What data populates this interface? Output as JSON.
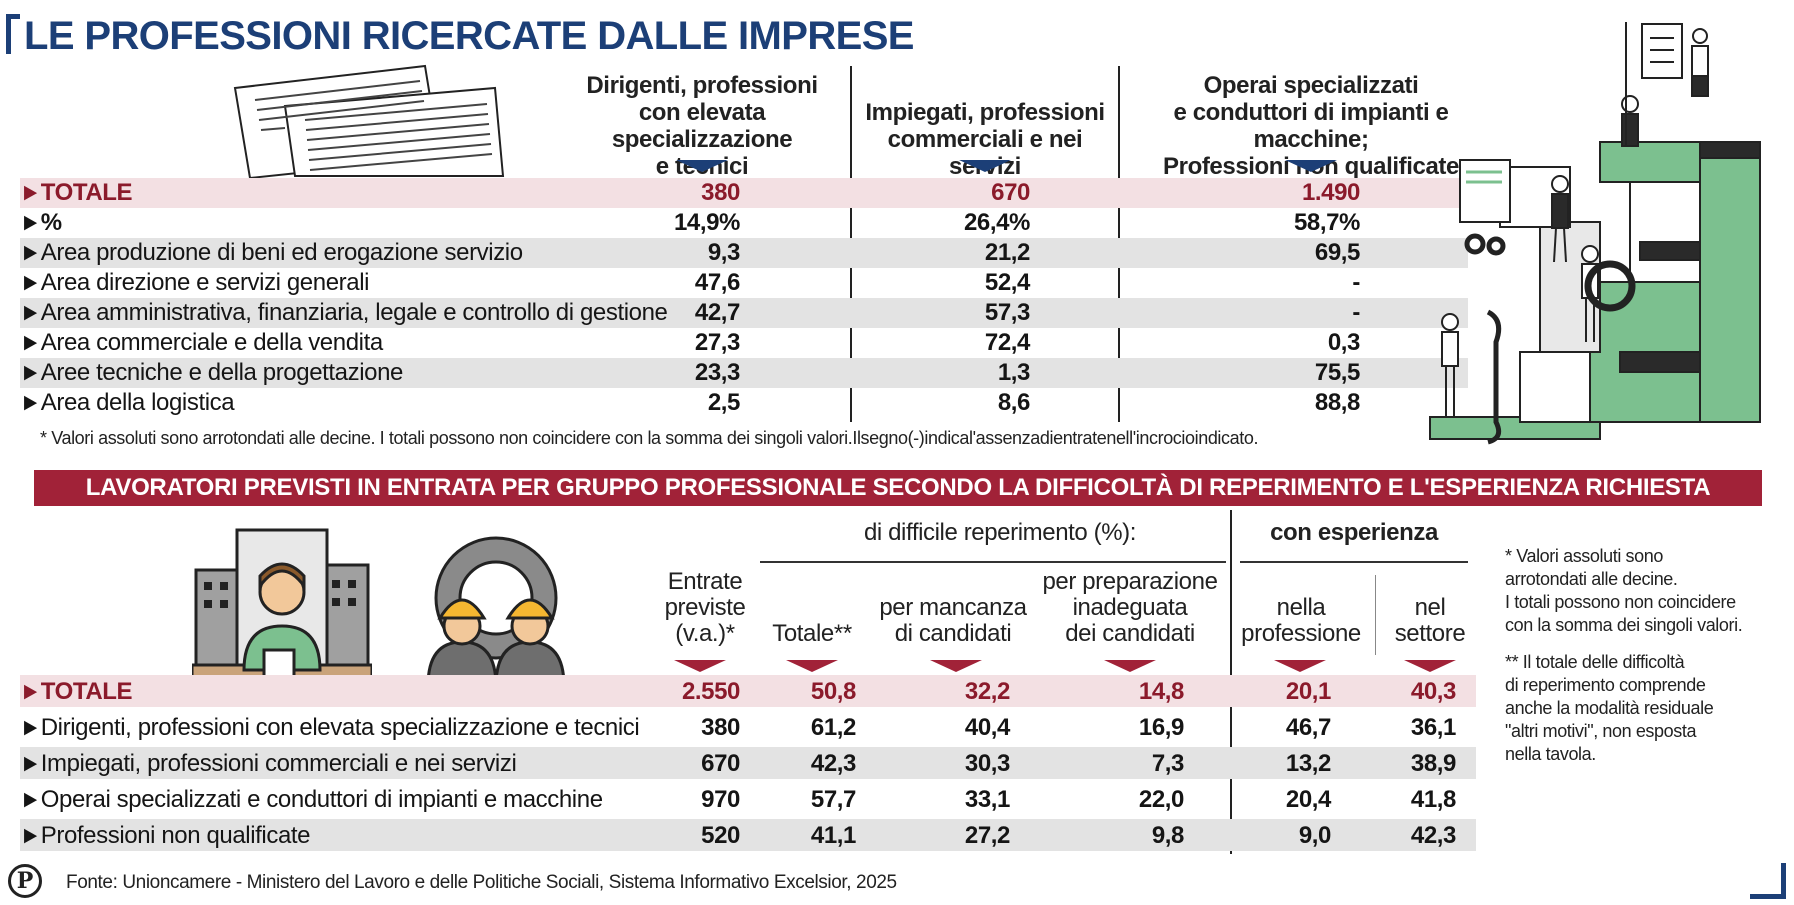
{
  "title": "LE PROFESSIONI RICERCATE DALLE IMPRESE",
  "top_table": {
    "columns": [
      {
        "label_lines": [
          "Dirigenti, professioni",
          "con elevata specializzazione",
          "e tecnici"
        ]
      },
      {
        "label_lines": [
          "Impiegati, professioni",
          "commerciali e nei servizi"
        ]
      },
      {
        "label_lines": [
          "Operai specializzati",
          "e conduttori di impianti e macchine;",
          "Professioni non qualificate"
        ]
      }
    ],
    "rows": [
      {
        "label": "TOTALE",
        "values": [
          "380",
          "670",
          "1.490"
        ]
      },
      {
        "label": "%",
        "values": [
          "14,9%",
          "26,4%",
          "58,7%"
        ]
      },
      {
        "label": "Area produzione di beni ed erogazione servizio",
        "values": [
          "9,3",
          "21,2",
          "69,5"
        ]
      },
      {
        "label": "Area direzione e servizi generali",
        "values": [
          "47,6",
          "52,4",
          "-"
        ]
      },
      {
        "label": "Area amministrativa, finanziaria, legale e controllo di gestione",
        "values": [
          "42,7",
          "57,3",
          "-"
        ]
      },
      {
        "label": "Area commerciale e della vendita",
        "values": [
          "27,3",
          "72,4",
          "0,3"
        ]
      },
      {
        "label": "Aree tecniche e della progettazione",
        "values": [
          "23,3",
          "1,3",
          "75,5"
        ]
      },
      {
        "label": "Area della logistica",
        "values": [
          "2,5",
          "8,6",
          "88,8"
        ]
      }
    ],
    "note": "* Valori assoluti sono arrotondati alle decine. I totali possono non coincidere con la somma dei singoli valori.Ilsegno(-)indical'assenzadientratenell'incrocioindicato."
  },
  "banner": "LAVORATORI PREVISTI IN ENTRATA PER GRUPPO PROFESSIONALE SECONDO LA DIFFICOLTÀ DI REPERIMENTO E L'ESPERIENZA RICHIESTA",
  "bottom_table": {
    "group_headers": {
      "difficult": "di difficile reperimento (%):",
      "experience": "con esperienza"
    },
    "columns": [
      {
        "label_lines": [
          "Entrate",
          "previste",
          "(v.a.)*"
        ]
      },
      {
        "label_lines": [
          "Totale**"
        ]
      },
      {
        "label_lines": [
          "per mancanza",
          "di candidati"
        ]
      },
      {
        "label_lines": [
          "per preparazione",
          "inadeguata",
          "dei candidati"
        ]
      },
      {
        "label_lines": [
          "nella",
          "professione"
        ]
      },
      {
        "label_lines": [
          "nel",
          "settore"
        ]
      }
    ],
    "rows": [
      {
        "label": "TOTALE",
        "values": [
          "2.550",
          "50,8",
          "32,2",
          "14,8",
          "20,1",
          "40,3"
        ]
      },
      {
        "label": "Dirigenti, professioni con elevata specializzazione e tecnici",
        "values": [
          "380",
          "61,2",
          "40,4",
          "16,9",
          "46,7",
          "36,1"
        ]
      },
      {
        "label": "Impiegati, professioni commerciali e nei servizi",
        "values": [
          "670",
          "42,3",
          "30,3",
          "7,3",
          "13,2",
          "38,9"
        ]
      },
      {
        "label": "Operai specializzati e conduttori di impianti e macchine",
        "values": [
          "970",
          "57,7",
          "33,1",
          "22,0",
          "20,4",
          "41,8"
        ]
      },
      {
        "label": "Professioni non qualificate",
        "values": [
          "520",
          "41,1",
          "27,2",
          "9,8",
          "9,0",
          "42,3"
        ]
      }
    ],
    "notes": [
      [
        "* Valori assoluti sono",
        "arrotondati alle decine.",
        "I totali possono non coincidere",
        "con la somma dei singoli valori."
      ],
      [
        "** Il totale delle difficoltà",
        "di reperimento comprende",
        "anche la modalità residuale",
        "\"altri motivi\", non esposta",
        "nella tavola."
      ]
    ]
  },
  "source_logo": "P",
  "source": "Fonte: Unioncamere - Ministero del Lavoro e delle Politiche Sociali, Sistema Informativo Excelsior, 2025",
  "colors": {
    "title_blue": "#1c3f77",
    "accent_red": "#a12238",
    "total_row_bg": "#f3e0e3",
    "alt_row_bg": "#e3e3e3",
    "illustration_green": "#7cc08f"
  }
}
